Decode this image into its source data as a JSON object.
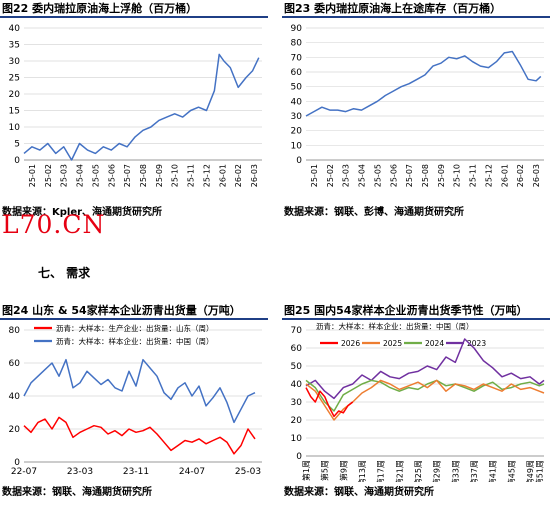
{
  "logo": "L70.CN",
  "section_heading": "七、 需求",
  "charts": [
    {
      "id": "fig22",
      "title": "图22 委内瑞拉原油海上浮舱（百万桶）",
      "source": "数据来源：Kpler、海通期货研究所",
      "chart_data": {
        "type": "line",
        "title": "图22 委内瑞拉原油海上浮舱（百万桶）",
        "ylim": [
          0,
          40
        ],
        "yticks": [
          0,
          5,
          10,
          15,
          20,
          25,
          30,
          35,
          40
        ],
        "xlim": [
          0,
          15
        ],
        "xticks": [
          "25-01",
          "25-02",
          "25-03",
          "25-04",
          "25-05",
          "25-06",
          "25-07",
          "25-08",
          "25-09",
          "25-10",
          "25-11",
          "25-12",
          "26-01",
          "26-02",
          "26-03"
        ],
        "series": [
          {
            "color": "#4472c4",
            "x": [
              0,
              0.5,
              1,
              1.5,
              2,
              2.5,
              3,
              3.5,
              4,
              4.5,
              5,
              5.5,
              6,
              6.5,
              7,
              7.5,
              8,
              8.5,
              9,
              9.5,
              10,
              10.5,
              11,
              11.5,
              12,
              12.3,
              12.6,
              13,
              13.5,
              14,
              14.4,
              14.8
            ],
            "y": [
              2,
              4,
              3,
              5,
              2,
              4,
              0,
              5,
              3,
              2,
              4,
              3,
              5,
              4,
              7,
              9,
              10,
              12,
              13,
              14,
              13,
              15,
              16,
              15,
              21,
              32,
              30,
              28,
              22,
              25,
              27,
              31
            ]
          }
        ]
      }
    },
    {
      "id": "fig23",
      "title": "图23 委内瑞拉原油海上在途库存（百万桶）",
      "source": "数据来源：钢联、彭博、海通期货研究所",
      "chart_data": {
        "type": "line",
        "title": "图23 委内瑞拉原油海上在途库存（百万桶）",
        "ylim": [
          0,
          90
        ],
        "yticks": [
          0,
          10,
          20,
          30,
          40,
          50,
          60,
          70,
          80,
          90
        ],
        "xlim": [
          0,
          15
        ],
        "xticks": [
          "25-01",
          "25-02",
          "25-03",
          "25-04",
          "25-05",
          "25-06",
          "25-07",
          "25-08",
          "25-09",
          "25-10",
          "25-11",
          "25-12",
          "26-01",
          "26-02",
          "26-03"
        ],
        "series": [
          {
            "color": "#4472c4",
            "x": [
              0,
              0.5,
              1,
              1.5,
              2,
              2.5,
              3,
              3.5,
              4,
              4.5,
              5,
              5.5,
              6,
              6.5,
              7,
              7.5,
              8,
              8.5,
              9,
              9.5,
              10,
              10.5,
              11,
              11.5,
              12,
              12.5,
              13,
              13.5,
              14,
              14.5,
              14.8
            ],
            "y": [
              30,
              33,
              36,
              34,
              34,
              33,
              35,
              34,
              37,
              40,
              44,
              47,
              50,
              52,
              55,
              58,
              64,
              66,
              70,
              69,
              71,
              67,
              64,
              63,
              67,
              73,
              74,
              65,
              55,
              54,
              57
            ]
          }
        ]
      }
    },
    {
      "id": "fig24",
      "title": "图24 山东 & 54家样本企业沥青出货量（万吨）",
      "source": "数据来源：钢联、海通期货研究所",
      "chart_data": {
        "type": "line",
        "title": "图24 山东 & 54家样本企业沥青出货量（万吨）",
        "ylim": [
          0,
          80
        ],
        "yticks": [
          0,
          20,
          40,
          60,
          80
        ],
        "xlim": [
          0,
          34
        ],
        "xticks": [
          "22-07",
          "23-03",
          "23-11",
          "24-07",
          "25-03"
        ],
        "xtick_pos": [
          0,
          8,
          16,
          24,
          32
        ],
        "legend": [
          "沥青：大样本：生产企业：出货量：山东（周）",
          "沥青：大样本：样本企业：出货量：中国（周）"
        ],
        "series": [
          {
            "name": "沥青：大样本：生产企业：出货量：山东（周）",
            "color": "#ff0000",
            "x": [
              0,
              1,
              2,
              3,
              4,
              5,
              6,
              7,
              8,
              9,
              10,
              11,
              12,
              13,
              14,
              15,
              16,
              17,
              18,
              19,
              20,
              21,
              22,
              23,
              24,
              25,
              26,
              27,
              28,
              29,
              30,
              31,
              32,
              33
            ],
            "y": [
              22,
              18,
              24,
              26,
              20,
              27,
              24,
              15,
              18,
              20,
              22,
              21,
              17,
              19,
              16,
              20,
              18,
              19,
              21,
              17,
              12,
              7,
              10,
              13,
              12,
              14,
              11,
              13,
              15,
              12,
              5,
              10,
              20,
              14
            ]
          },
          {
            "name": "沥青：大样本：样本企业：出货量：中国（周）",
            "color": "#4472c4",
            "x": [
              0,
              1,
              2,
              3,
              4,
              5,
              6,
              7,
              8,
              9,
              10,
              11,
              12,
              13,
              14,
              15,
              16,
              17,
              18,
              19,
              20,
              21,
              22,
              23,
              24,
              25,
              26,
              27,
              28,
              29,
              30,
              31,
              32,
              33
            ],
            "y": [
              40,
              48,
              52,
              56,
              60,
              52,
              62,
              45,
              48,
              55,
              51,
              47,
              50,
              45,
              43,
              55,
              46,
              62,
              57,
              52,
              42,
              38,
              45,
              48,
              40,
              46,
              34,
              39,
              45,
              36,
              24,
              32,
              40,
              42
            ]
          }
        ]
      }
    },
    {
      "id": "fig25",
      "title": "图25 国内54家样本企业沥青出货季节性（万吨）",
      "source": "数据来源：钢联、海通期货研究所",
      "chart_data": {
        "type": "line",
        "title": "图25 国内54家样本企业沥青出货季节性（万吨）",
        "axis_title": "沥青：大样本：样本企业：出货量：中国（周）",
        "ylim": [
          0,
          70
        ],
        "yticks": [
          0,
          10,
          20,
          30,
          40,
          50,
          60,
          70
        ],
        "xlim": [
          1,
          52
        ],
        "xticks": [
          "第1周",
          "第5周",
          "第9周",
          "第13周",
          "第17周",
          "第21周",
          "第25周",
          "第29周",
          "第33周",
          "第37周",
          "第41周",
          "第45周",
          "第49周",
          "第51周"
        ],
        "xtick_pos": [
          1,
          5,
          9,
          13,
          17,
          21,
          25,
          29,
          33,
          37,
          41,
          45,
          49,
          51
        ],
        "legend": [
          "2026",
          "2025",
          "2024",
          "2023"
        ],
        "series": [
          {
            "name": "2026",
            "color": "#ff0000",
            "x": [
              1,
              2,
              3,
              4,
              5,
              6,
              7,
              8,
              9,
              10,
              11
            ],
            "y": [
              38,
              33,
              30,
              36,
              33,
              27,
              22,
              25,
              24,
              28,
              30
            ]
          },
          {
            "name": "2025",
            "color": "#ed7d31",
            "x": [
              1,
              3,
              5,
              7,
              9,
              11,
              13,
              15,
              17,
              19,
              21,
              23,
              25,
              27,
              29,
              31,
              33,
              35,
              37,
              39,
              41,
              43,
              45,
              47,
              49,
              51,
              52
            ],
            "y": [
              40,
              36,
              28,
              20,
              26,
              30,
              35,
              38,
              42,
              40,
              37,
              39,
              41,
              38,
              42,
              36,
              40,
              39,
              37,
              40,
              38,
              36,
              40,
              37,
              38,
              36,
              35
            ]
          },
          {
            "name": "2024",
            "color": "#70ad47",
            "x": [
              1,
              3,
              5,
              7,
              9,
              11,
              13,
              15,
              17,
              19,
              21,
              23,
              25,
              27,
              29,
              31,
              33,
              35,
              37,
              39,
              41,
              43,
              45,
              47,
              49,
              51,
              52
            ],
            "y": [
              42,
              38,
              30,
              25,
              34,
              37,
              40,
              42,
              41,
              38,
              36,
              38,
              37,
              40,
              42,
              39,
              40,
              38,
              36,
              39,
              41,
              37,
              38,
              40,
              41,
              39,
              40
            ]
          },
          {
            "name": "2023",
            "color": "#7030a0",
            "x": [
              1,
              3,
              5,
              7,
              9,
              11,
              13,
              15,
              17,
              19,
              21,
              23,
              25,
              27,
              29,
              31,
              33,
              35,
              37,
              39,
              41,
              43,
              45,
              47,
              49,
              51,
              52
            ],
            "y": [
              39,
              42,
              36,
              32,
              38,
              40,
              45,
              42,
              47,
              44,
              43,
              46,
              47,
              50,
              48,
              55,
              52,
              65,
              60,
              53,
              49,
              44,
              46,
              43,
              44,
              40,
              42
            ]
          }
        ]
      }
    }
  ]
}
